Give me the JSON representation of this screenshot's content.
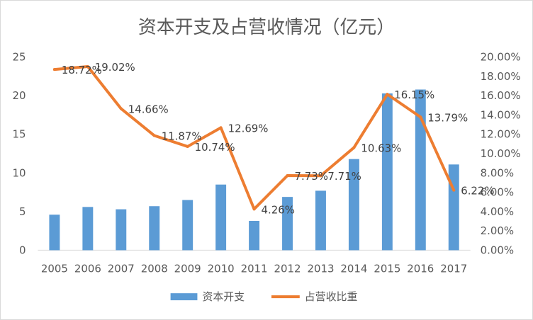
{
  "chart_data": {
    "type": "bar+line",
    "title": "资本开支及占营收情况（亿元）",
    "categories": [
      "2005",
      "2006",
      "2007",
      "2008",
      "2009",
      "2010",
      "2011",
      "2012",
      "2013",
      "2014",
      "2015",
      "2016",
      "2017"
    ],
    "series": [
      {
        "name": "资本开支",
        "type": "bar",
        "axis": "left",
        "values": [
          4.6,
          5.6,
          5.3,
          5.7,
          6.5,
          8.5,
          3.8,
          6.9,
          7.7,
          11.8,
          20.3,
          20.8,
          11.1
        ]
      },
      {
        "name": "占营收比重",
        "type": "line",
        "axis": "right",
        "values": [
          18.72,
          19.02,
          14.66,
          11.87,
          10.74,
          12.69,
          4.26,
          7.73,
          7.71,
          10.63,
          16.15,
          13.79,
          6.22
        ],
        "labels": [
          "18.72%",
          "19.02%",
          "14.66%",
          "11.87%",
          "10.74%",
          "12.69%",
          "4.26%",
          "7.73%",
          "7.71%",
          "10.63%",
          "16.15%",
          "13.79%",
          "6.22%"
        ]
      }
    ],
    "y_left": {
      "min": 0,
      "max": 25,
      "ticks": [
        "0",
        "5",
        "10",
        "15",
        "20",
        "25"
      ]
    },
    "y_right": {
      "min": 0,
      "max": 20,
      "ticks": [
        "0.00%",
        "2.00%",
        "4.00%",
        "6.00%",
        "8.00%",
        "10.00%",
        "12.00%",
        "14.00%",
        "16.00%",
        "18.00%",
        "20.00%"
      ]
    },
    "grid": false,
    "legend": "bottom",
    "colors": {
      "bar": "#5B9BD5",
      "line": "#ED7D31"
    }
  }
}
